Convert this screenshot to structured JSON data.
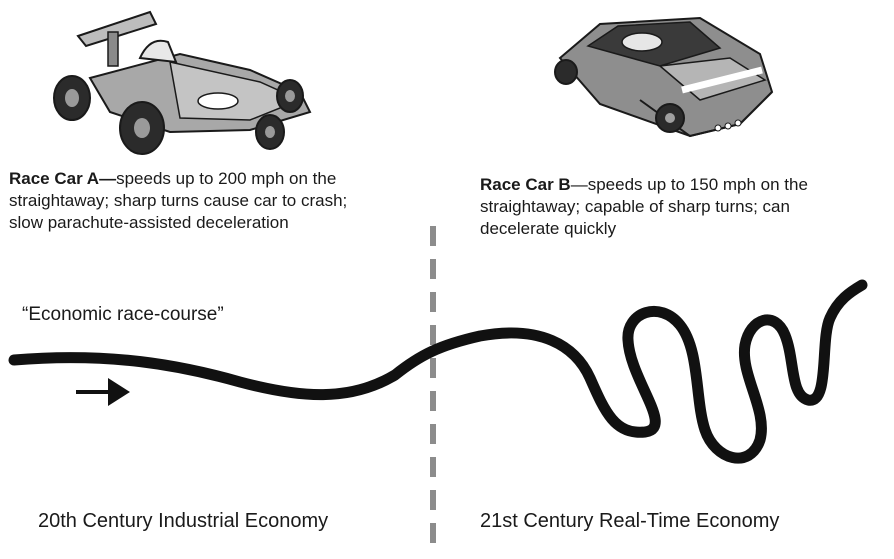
{
  "car_a": {
    "name": "Race Car A",
    "dash": "—",
    "description": "speeds up to 200 mph on the straightaway; sharp turns cause car to crash; slow parachute-assisted deceleration"
  },
  "car_b": {
    "name": "Race Car B",
    "dash": "—",
    "description": "speeds up to 150 mph on the straightaway; capable of sharp turns; can decelerate quickly"
  },
  "course_label": "“Economic race-course”",
  "eras": {
    "left": "20th Century Industrial Economy",
    "right": "21st Century Real-Time Economy"
  },
  "colors": {
    "ink": "#1a1a1a",
    "divider": "#8c8c8c",
    "car_body": "#a8a8a8",
    "car_dark": "#2b2b2b"
  }
}
